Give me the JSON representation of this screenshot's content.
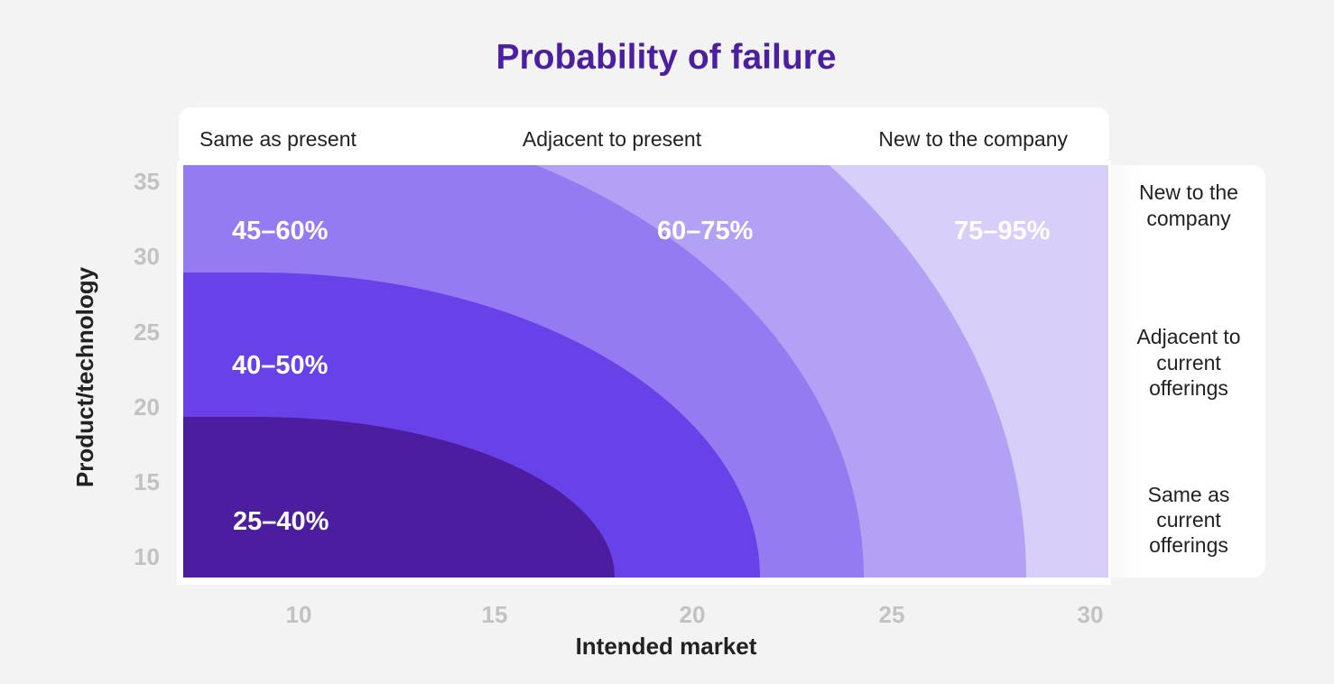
{
  "chart_data": {
    "type": "area",
    "title": "Probability of failure",
    "xlabel": "Intended market",
    "ylabel": "Product/technology",
    "x_ticks": [
      10,
      15,
      20,
      25,
      30
    ],
    "y_ticks": [
      10,
      15,
      20,
      25,
      30,
      35
    ],
    "top_categories": [
      "Same as present",
      "Adjacent to present",
      "New to the company"
    ],
    "right_categories": [
      "New to the company",
      "Adjacent to current offerings",
      "Same as current offerings"
    ],
    "zones": [
      {
        "label": "25–40%",
        "color": "#4c1d9f"
      },
      {
        "label": "40–50%",
        "color": "#6941e8"
      },
      {
        "label": "45–60%",
        "color": "#957bf1"
      },
      {
        "label": "60–75%",
        "color": "#b3a1f5"
      },
      {
        "label": "75–95%",
        "color": "#d8cefa"
      }
    ],
    "grid": false,
    "legend": "none"
  }
}
